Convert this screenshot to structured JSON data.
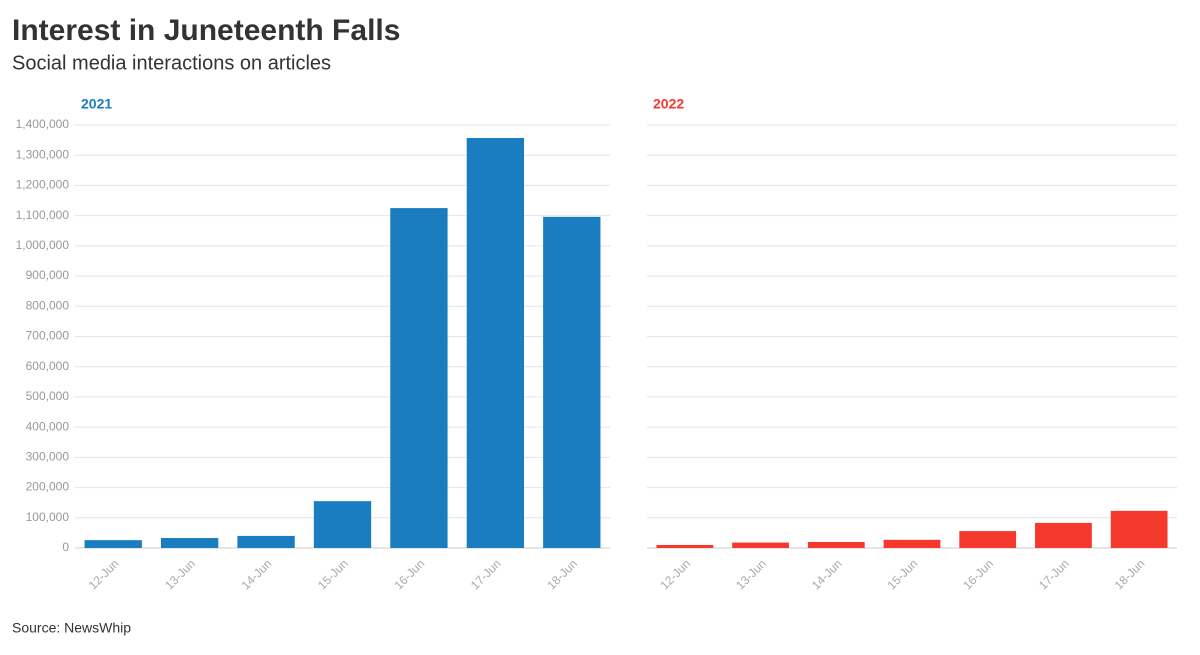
{
  "title": "Interest in Juneteenth Falls",
  "subtitle": "Social media interactions on articles",
  "source": "Source: NewsWhip",
  "chart_data": [
    {
      "type": "bar",
      "title": "2021",
      "color": "#1a7dc0",
      "categories": [
        "12-Jun",
        "13-Jun",
        "14-Jun",
        "15-Jun",
        "16-Jun",
        "17-Jun",
        "18-Jun"
      ],
      "values": [
        26000,
        33000,
        40000,
        155000,
        1125000,
        1357000,
        1096000
      ],
      "ylim": [
        0,
        1400000
      ],
      "yticks": [
        0,
        {
          "value": 100000,
          "label": "100,000"
        },
        {
          "value": 200000,
          "label": "200,000"
        },
        {
          "value": 300000,
          "label": "300,000"
        },
        {
          "value": 400000,
          "label": "400,000"
        },
        {
          "value": 500000,
          "label": "500,000"
        },
        {
          "value": 600000,
          "label": "600,000"
        },
        {
          "value": 700000,
          "label": "700,000"
        },
        {
          "value": 800000,
          "label": "800,000"
        },
        {
          "value": 900000,
          "label": "900,000"
        },
        {
          "value": 1000000,
          "label": "1,000,000"
        },
        {
          "value": 1100000,
          "label": "1,100,000"
        },
        {
          "value": 1200000,
          "label": "1,200,000"
        },
        {
          "value": 1300000,
          "label": "1,300,000"
        },
        {
          "value": 1400000,
          "label": "1,400,000"
        }
      ],
      "show_ytick_labels": true,
      "grid": true
    },
    {
      "type": "bar",
      "title": "2022",
      "color": "#f5392d",
      "categories": [
        "12-Jun",
        "13-Jun",
        "14-Jun",
        "15-Jun",
        "16-Jun",
        "17-Jun",
        "18-Jun"
      ],
      "values": [
        10000,
        18000,
        20000,
        27000,
        56000,
        83000,
        123000
      ],
      "ylim": [
        0,
        1400000
      ],
      "yticks": [
        0,
        100000,
        200000,
        300000,
        400000,
        500000,
        600000,
        700000,
        800000,
        900000,
        1000000,
        1100000,
        1200000,
        1300000,
        1400000
      ],
      "show_ytick_labels": false,
      "grid": true
    }
  ]
}
